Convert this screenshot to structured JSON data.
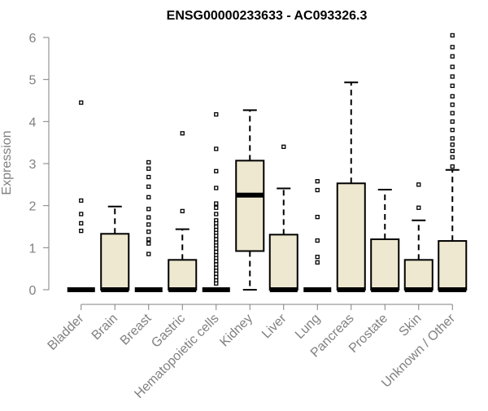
{
  "chart_data": {
    "type": "boxplot",
    "title": "ENSG00000233633 - AC093326.3",
    "ylabel": "Expression",
    "xlabel": "",
    "ylim": [
      0,
      6
    ],
    "y_ticks": [
      0,
      1,
      2,
      3,
      4,
      5,
      6
    ],
    "grid": false,
    "colors": {
      "box_fill": "#efe8d0",
      "box_stroke": "#000000",
      "axis": "#808080",
      "label": "#808080",
      "title": "#000000"
    },
    "categories": [
      "Bladder",
      "Brain",
      "Breast",
      "Gastric",
      "Hematopoietic cells",
      "Kidney",
      "Liver",
      "Lung",
      "Pancreas",
      "Prostate",
      "Skin",
      "Unknown / Other"
    ],
    "boxes": [
      {
        "category": "Bladder",
        "q1": 0,
        "median": 0,
        "q3": 0,
        "whisker_low": 0,
        "whisker_high": 0,
        "outliers": [
          4.45,
          2.12,
          1.8,
          1.58,
          1.4
        ]
      },
      {
        "category": "Brain",
        "q1": 0,
        "median": 0,
        "q3": 1.33,
        "whisker_low": 0,
        "whisker_high": 1.98,
        "outliers": []
      },
      {
        "category": "Breast",
        "q1": 0,
        "median": 0,
        "q3": 0,
        "whisker_low": 0,
        "whisker_high": 0,
        "outliers": [
          3.03,
          2.88,
          2.68,
          2.45,
          2.2,
          1.92,
          1.72,
          1.55,
          1.38,
          1.2,
          1.1,
          0.85
        ]
      },
      {
        "category": "Gastric",
        "q1": 0,
        "median": 0,
        "q3": 0.71,
        "whisker_low": 0,
        "whisker_high": 1.44,
        "outliers": [
          3.72,
          1.87
        ]
      },
      {
        "category": "Hematopoietic cells",
        "q1": 0,
        "median": 0,
        "q3": 0,
        "whisker_low": 0,
        "whisker_high": 0,
        "outliers": [
          4.17,
          3.35,
          2.82,
          2.42,
          2.05,
          1.95,
          1.8,
          1.65,
          1.58,
          1.5,
          1.42,
          1.35,
          1.28,
          1.2,
          1.12,
          1.05,
          0.98,
          0.9,
          0.82,
          0.75,
          0.68,
          0.6,
          0.52,
          0.45,
          0.38,
          0.3,
          0.22,
          0.15
        ]
      },
      {
        "category": "Kidney",
        "q1": 0.92,
        "median": 2.25,
        "q3": 3.07,
        "whisker_low": 0,
        "whisker_high": 4.27,
        "outliers": []
      },
      {
        "category": "Liver",
        "q1": 0,
        "median": 0,
        "q3": 1.31,
        "whisker_low": 0,
        "whisker_high": 2.41,
        "outliers": [
          3.4
        ]
      },
      {
        "category": "Lung",
        "q1": 0,
        "median": 0,
        "q3": 0,
        "whisker_low": 0,
        "whisker_high": 0,
        "outliers": [
          2.58,
          2.37,
          1.73,
          1.17,
          0.78,
          0.65
        ]
      },
      {
        "category": "Pancreas",
        "q1": 0,
        "median": 0,
        "q3": 2.53,
        "whisker_low": 0,
        "whisker_high": 4.93,
        "outliers": []
      },
      {
        "category": "Prostate",
        "q1": 0,
        "median": 0,
        "q3": 1.2,
        "whisker_low": 0,
        "whisker_high": 2.38,
        "outliers": []
      },
      {
        "category": "Skin",
        "q1": 0,
        "median": 0,
        "q3": 0.71,
        "whisker_low": 0,
        "whisker_high": 1.65,
        "outliers": [
          2.5,
          1.95
        ]
      },
      {
        "category": "Unknown / Other",
        "q1": 0,
        "median": 0,
        "q3": 1.16,
        "whisker_low": 0,
        "whisker_high": 2.85,
        "outliers": [
          6.05,
          5.77,
          5.55,
          5.3,
          5.07,
          4.85,
          4.6,
          4.4,
          4.2,
          4.0,
          3.8,
          3.6,
          3.45,
          3.3,
          3.15,
          2.93
        ]
      }
    ]
  }
}
